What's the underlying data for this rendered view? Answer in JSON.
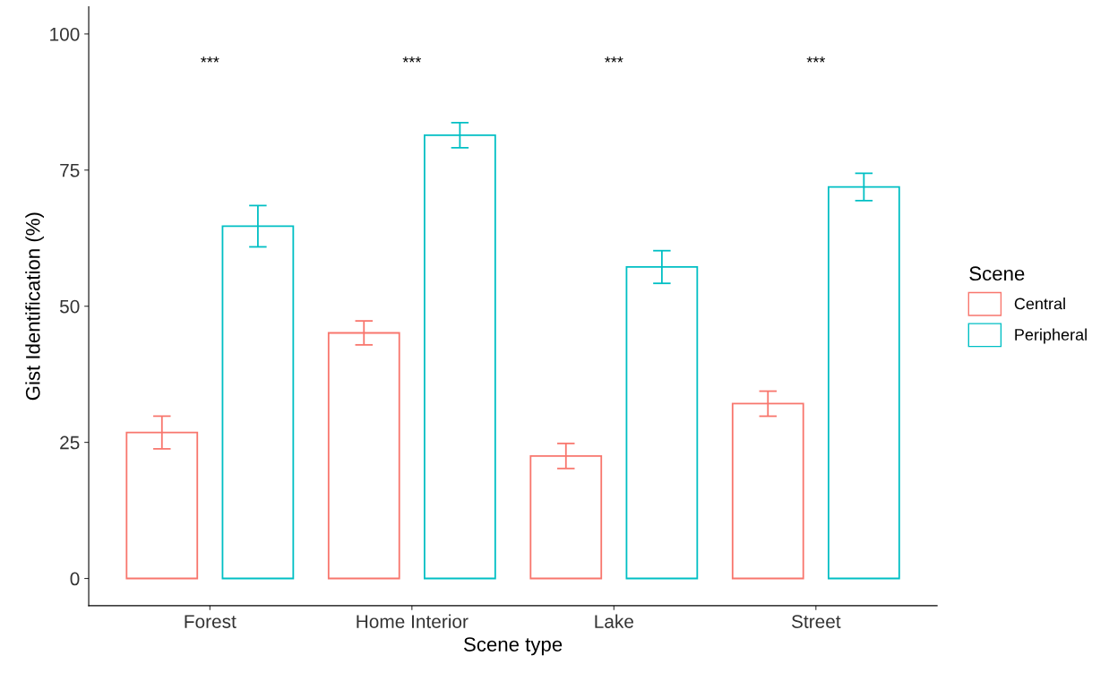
{
  "chart_data": {
    "type": "bar",
    "xlabel": "Scene type",
    "ylabel": "Gist Identification (%)",
    "legend_title": "Scene",
    "categories": [
      "Forest",
      "Home Interior",
      "Lake",
      "Street"
    ],
    "series": [
      {
        "name": "Central",
        "color": "#f8766d",
        "values": [
          26.8,
          45.1,
          22.5,
          32.1
        ],
        "errors": [
          3.0,
          2.2,
          2.3,
          2.3
        ]
      },
      {
        "name": "Peripheral",
        "color": "#00bfc4",
        "values": [
          64.7,
          81.4,
          57.2,
          71.9
        ],
        "errors": [
          3.8,
          2.3,
          3.0,
          2.5
        ]
      }
    ],
    "ylim": [
      -5,
      105
    ],
    "yticks": [
      0,
      25,
      50,
      75,
      100
    ],
    "grid": false,
    "legend": "right",
    "annotations": [
      "***",
      "***",
      "***",
      "***"
    ]
  }
}
